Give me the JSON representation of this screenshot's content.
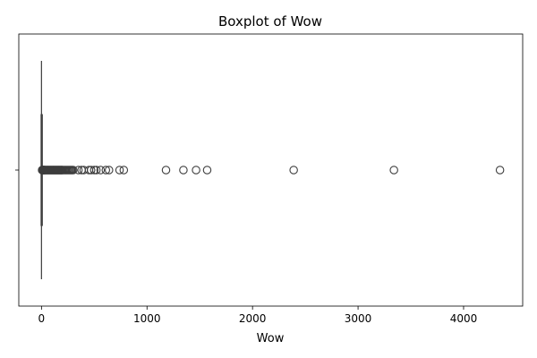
{
  "chart_data": {
    "type": "boxplot",
    "title": "Boxplot of Wow",
    "xlabel": "Wow",
    "ylabel": "",
    "orientation": "horizontal",
    "xlim": [
      -215,
      4560
    ],
    "x_ticks": [
      0,
      1000,
      2000,
      3000,
      4000
    ],
    "x_tick_labels": [
      "0",
      "1000",
      "2000",
      "3000",
      "4000"
    ],
    "y_ticks": [
      ""
    ],
    "grid": false,
    "box": {
      "q1": 0,
      "median": 1,
      "q3": 2,
      "whisker_low": 0,
      "whisker_high": 5
    },
    "outliers": [
      6,
      8,
      10,
      12,
      14,
      16,
      18,
      20,
      22,
      25,
      28,
      31,
      35,
      40,
      45,
      50,
      55,
      60,
      65,
      70,
      75,
      80,
      85,
      90,
      95,
      100,
      105,
      110,
      115,
      120,
      125,
      130,
      135,
      140,
      145,
      150,
      155,
      160,
      165,
      170,
      175,
      180,
      185,
      190,
      195,
      200,
      210,
      220,
      230,
      240,
      250,
      260,
      270,
      280,
      290,
      300,
      350,
      380,
      400,
      450,
      470,
      500,
      520,
      560,
      610,
      640,
      740,
      780,
      1180,
      1345,
      1465,
      1570,
      2390,
      3340,
      4345
    ],
    "colors": {
      "line": "#3d3d3d",
      "spine": "#000000",
      "background": "#ffffff"
    }
  }
}
